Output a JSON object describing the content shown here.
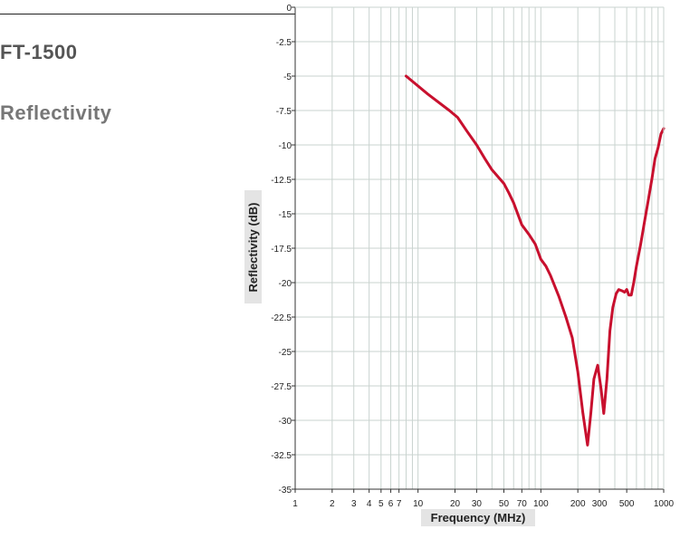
{
  "header": {
    "model": "FT-1500",
    "title": "Reflectivity"
  },
  "colors": {
    "series": "#c8102e",
    "grid": "#c9d3cf",
    "plot_bg": "#ffffff",
    "label_bg": "#e4e4e4"
  },
  "chart_data": {
    "type": "line",
    "xlabel": "Frequency (MHz)",
    "ylabel": "Reflectivity (dB)",
    "x_scale": "log",
    "xlim": [
      1,
      1000
    ],
    "ylim": [
      -35,
      0
    ],
    "grid": true,
    "x_ticks": [
      1,
      2,
      3,
      4,
      5,
      6,
      7,
      10,
      20,
      30,
      50,
      70,
      100,
      200,
      300,
      500,
      1000
    ],
    "x_tick_labels": [
      "1",
      "2",
      "3",
      "4",
      "5",
      "6",
      "7",
      "10",
      "20",
      "30",
      "50",
      "70",
      "100",
      "200",
      "300",
      "500",
      "1000"
    ],
    "y_ticks": [
      0,
      -2.5,
      -5,
      -7.5,
      -10,
      -12.5,
      -15,
      -17.5,
      -20,
      -22.5,
      -25,
      -27.5,
      -30,
      -32.5,
      -35
    ],
    "y_tick_labels": [
      "0",
      "-2.5",
      "-5",
      "-7.5",
      "-10",
      "-12.5",
      "-15",
      "-17.5",
      "-20",
      "-22.5",
      "-25",
      "-27.5",
      "-30",
      "-32.5",
      "-35"
    ],
    "series": [
      {
        "x": [
          8,
          12,
          18,
          21,
          25,
          30,
          35,
          40,
          50,
          55,
          60,
          70,
          80,
          90,
          100,
          110,
          120,
          140,
          160,
          180,
          200,
          220,
          240,
          255,
          270,
          290,
          310,
          325,
          345,
          365,
          385,
          410,
          430,
          460,
          480,
          500,
          520,
          545,
          570,
          600,
          650,
          700,
          750,
          800,
          850,
          900,
          950,
          1000
        ],
        "y": [
          -5,
          -6.3,
          -7.5,
          -8,
          -9,
          -10,
          -11,
          -11.8,
          -12.8,
          -13.5,
          -14.2,
          -15.8,
          -16.5,
          -17.2,
          -18.3,
          -18.8,
          -19.5,
          -21,
          -22.5,
          -24,
          -26.5,
          -29.5,
          -31.8,
          -29.5,
          -27,
          -26,
          -27.8,
          -29.5,
          -27,
          -23.5,
          -21.8,
          -20.8,
          -20.5,
          -20.6,
          -20.7,
          -20.5,
          -20.9,
          -20.9,
          -20,
          -18.8,
          -17.2,
          -15.5,
          -14,
          -12.5,
          -11,
          -10.2,
          -9.2,
          -8.8
        ]
      }
    ]
  }
}
